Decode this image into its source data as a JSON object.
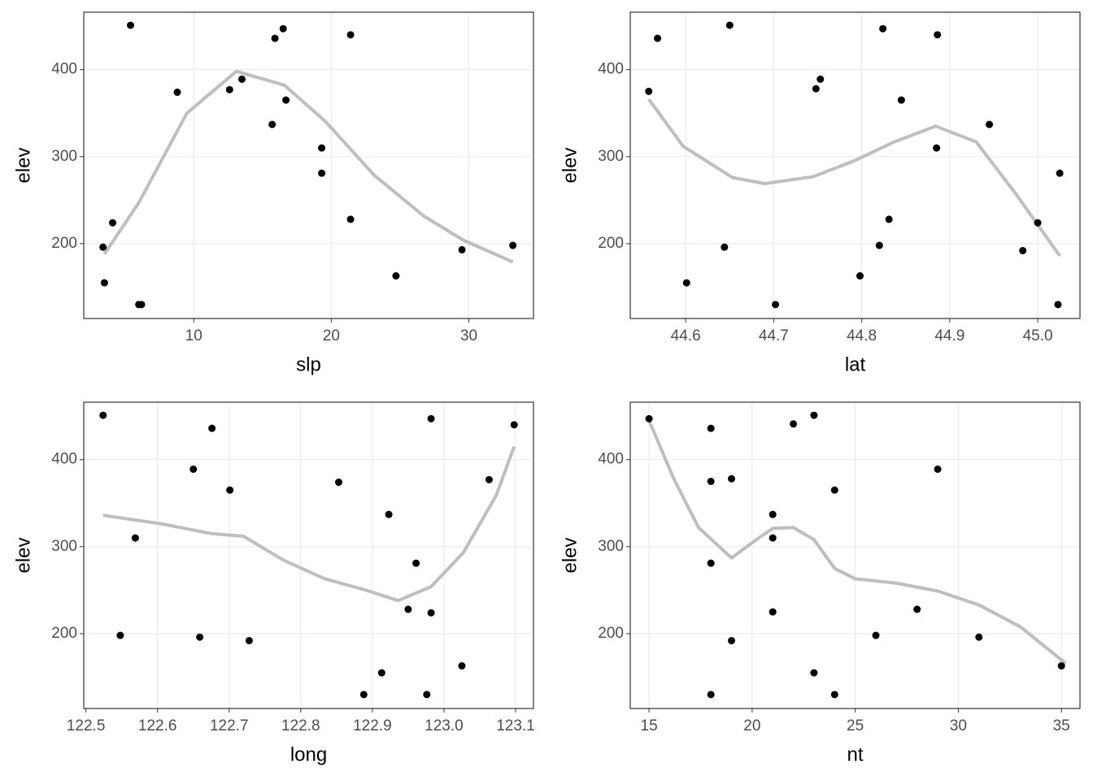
{
  "chart_data": [
    {
      "type": "scatter",
      "x_label": "slp",
      "y_label": "elev",
      "color": "#000000",
      "x": [
        5.4,
        3.4,
        4.1,
        3.5,
        6.0,
        6.2,
        8.8,
        12.6,
        13.5,
        15.9,
        16.5,
        15.7,
        16.7,
        19.3,
        19.3,
        21.4,
        21.4,
        24.7,
        29.5,
        33.2
      ],
      "values": [
        451,
        196,
        224,
        155,
        130,
        130,
        374,
        377,
        389,
        436,
        447,
        337,
        365,
        310,
        281,
        440,
        228,
        163,
        193,
        198
      ],
      "smooth": {
        "color": "#bebebe",
        "x": [
          3.5,
          6.0,
          9.5,
          13.1,
          16.6,
          19.6,
          23.1,
          26.7,
          29.6,
          33.2
        ],
        "values": [
          188,
          247,
          350,
          398,
          382,
          340,
          279,
          232,
          204,
          179
        ]
      },
      "xlim": [
        2.0,
        34.7
      ],
      "ylim": [
        114,
        466
      ],
      "xticks": [
        10,
        20,
        30
      ],
      "yticks": [
        200,
        300,
        400
      ],
      "grid": true
    },
    {
      "type": "scatter",
      "x_label": "lat",
      "y_label": "elev",
      "color": "#000000",
      "x": [
        44.558,
        44.568,
        44.65,
        44.601,
        44.644,
        44.702,
        44.748,
        44.753,
        44.824,
        44.886,
        44.845,
        44.798,
        44.82,
        44.831,
        44.885,
        44.945,
        44.983,
        45.0,
        45.025,
        45.023
      ],
      "values": [
        375,
        436,
        451,
        155,
        196,
        130,
        378,
        389,
        447,
        440,
        365,
        163,
        198,
        228,
        310,
        337,
        192,
        224,
        281,
        130
      ],
      "smooth": {
        "color": "#bebebe",
        "x": [
          44.558,
          44.597,
          44.653,
          44.69,
          44.745,
          44.791,
          44.837,
          44.884,
          44.93,
          44.976,
          45.025
        ],
        "values": [
          366,
          312,
          276,
          269,
          277,
          295,
          317,
          335,
          317,
          256,
          186
        ]
      },
      "xlim": [
        44.537,
        45.048
      ],
      "ylim": [
        114,
        466
      ],
      "xticks": [
        44.6,
        44.7,
        44.8,
        44.9,
        {
          "value": 45,
          "label": "45.0"
        }
      ],
      "yticks": [
        200,
        300,
        400
      ],
      "grid": true
    },
    {
      "type": "scatter",
      "x_label": "long",
      "y_label": "elev",
      "color": "#000000",
      "x": [
        122.524,
        122.65,
        122.676,
        122.701,
        122.569,
        122.548,
        122.659,
        122.728,
        122.853,
        122.888,
        122.913,
        122.923,
        122.95,
        122.961,
        122.982,
        122.982,
        122.976,
        123.025,
        123.063,
        123.098
      ],
      "values": [
        451,
        389,
        436,
        365,
        310,
        198,
        196,
        192,
        374,
        130,
        155,
        337,
        228,
        281,
        224,
        447,
        130,
        163,
        377,
        440
      ],
      "smooth": {
        "color": "#bebebe",
        "x": [
          122.524,
          122.607,
          122.675,
          122.72,
          122.777,
          122.834,
          122.891,
          122.936,
          122.982,
          123.027,
          123.073,
          123.098
        ],
        "values": [
          336,
          326,
          315,
          312,
          284,
          263,
          250,
          238,
          254,
          293,
          359,
          415
        ]
      },
      "xlim": [
        122.497,
        123.125
      ],
      "ylim": [
        114,
        466
      ],
      "xticks": [
        122.5,
        122.6,
        122.7,
        122.8,
        122.9,
        {
          "value": 123,
          "label": "123.0"
        },
        123.1
      ],
      "yticks": [
        200,
        300,
        400
      ],
      "grid": true
    },
    {
      "type": "scatter",
      "x_label": "nt",
      "y_label": "elev",
      "color": "#000000",
      "x": [
        15,
        18,
        18,
        19,
        18,
        18,
        19,
        21,
        21,
        21,
        22,
        23,
        23,
        24,
        24,
        26,
        28,
        29,
        31,
        35
      ],
      "values": [
        447,
        436,
        375,
        378,
        281,
        130,
        192,
        337,
        310,
        225,
        441,
        451,
        155,
        365,
        130,
        198,
        228,
        389,
        196,
        163
      ],
      "smooth": {
        "color": "#bebebe",
        "x": [
          15,
          16.2,
          17.4,
          19.0,
          20.2,
          21,
          22,
          23,
          24,
          25,
          27,
          29,
          31,
          33,
          35.2
        ],
        "values": [
          445,
          378,
          322,
          287,
          308,
          321,
          322,
          308,
          275,
          263,
          258,
          249,
          233,
          208,
          166
        ]
      },
      "xlim": [
        14.09,
        35.9
      ],
      "ylim": [
        114,
        466
      ],
      "xticks": [
        15,
        20,
        25,
        30,
        35
      ],
      "yticks": [
        200,
        300,
        400
      ],
      "grid": true
    }
  ]
}
